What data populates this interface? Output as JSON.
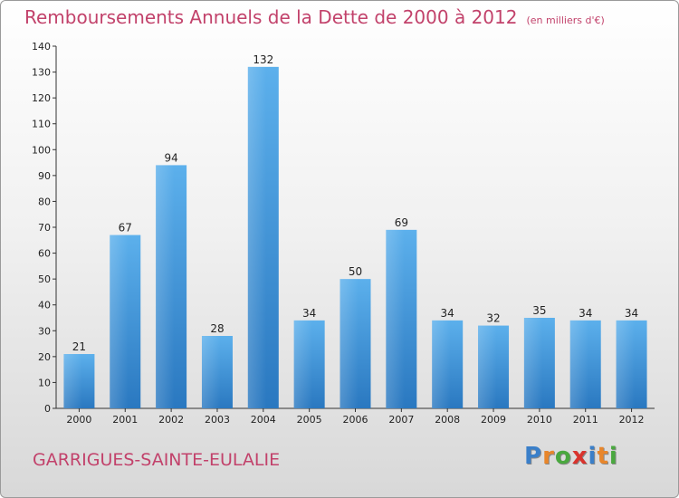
{
  "chart_data": {
    "type": "bar",
    "title": "Remboursements Annuels de la Dette de 2000 à 2012",
    "subtitle": "(en milliers d'€)",
    "categories": [
      "2000",
      "2001",
      "2002",
      "2003",
      "2004",
      "2005",
      "2006",
      "2007",
      "2008",
      "2009",
      "2010",
      "2011",
      "2012"
    ],
    "values": [
      21,
      67,
      94,
      28,
      132,
      34,
      50,
      69,
      34,
      32,
      35,
      34,
      34
    ],
    "ylim": [
      0,
      140
    ],
    "yticks": [
      0,
      10,
      20,
      30,
      40,
      50,
      60,
      70,
      80,
      90,
      100,
      110,
      120,
      130,
      140
    ],
    "grid": false,
    "bar_color": "#3b8fd6"
  },
  "footer": {
    "city": "GARRIGUES-SAINTE-EULALIE",
    "logo_letters": [
      "P",
      "r",
      "o",
      "x",
      "i",
      "t",
      "i"
    ],
    "logo_colors": [
      "#3a7fc9",
      "#e8862b",
      "#4aa83f",
      "#d9332d",
      "#3a7fc9",
      "#e8862b",
      "#4aa83f"
    ]
  }
}
